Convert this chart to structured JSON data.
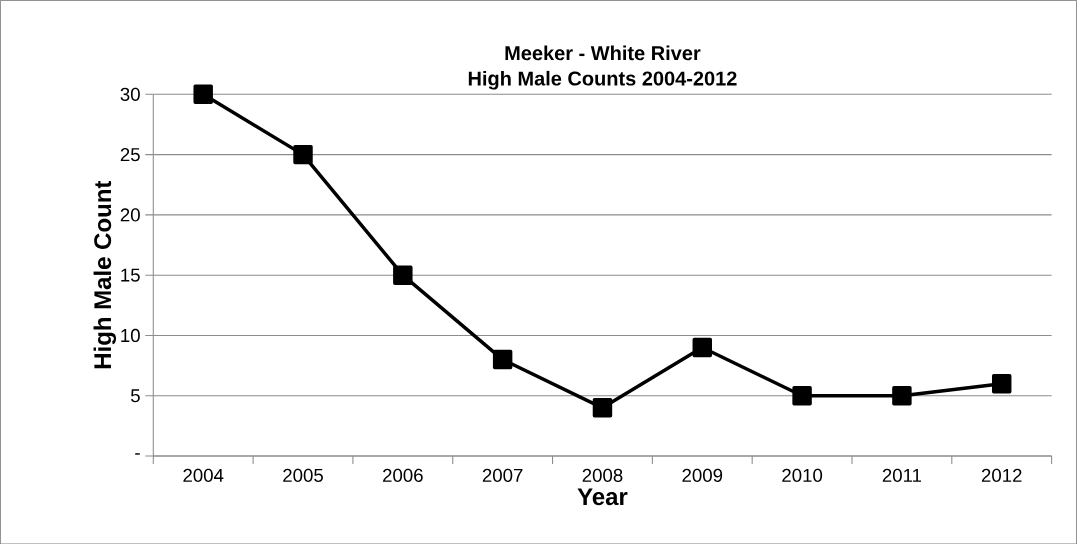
{
  "chart_data": {
    "type": "line",
    "title": "Meeker - White River",
    "subtitle": "High Male Counts 2004-2012",
    "xlabel": "Year",
    "ylabel": "High Male Count",
    "categories": [
      "2004",
      "2005",
      "2006",
      "2007",
      "2008",
      "2009",
      "2010",
      "2011",
      "2012"
    ],
    "series": [
      {
        "color": "#000000",
        "values": [
          30,
          25,
          15,
          8,
          4,
          9,
          5,
          5,
          6
        ]
      }
    ],
    "ylim": [
      0,
      30
    ],
    "yticks": [
      {
        "value": 0,
        "label": "-"
      },
      5,
      10,
      15,
      20,
      25,
      30
    ],
    "grid": "y",
    "marker": "square",
    "line_style": "solid"
  }
}
